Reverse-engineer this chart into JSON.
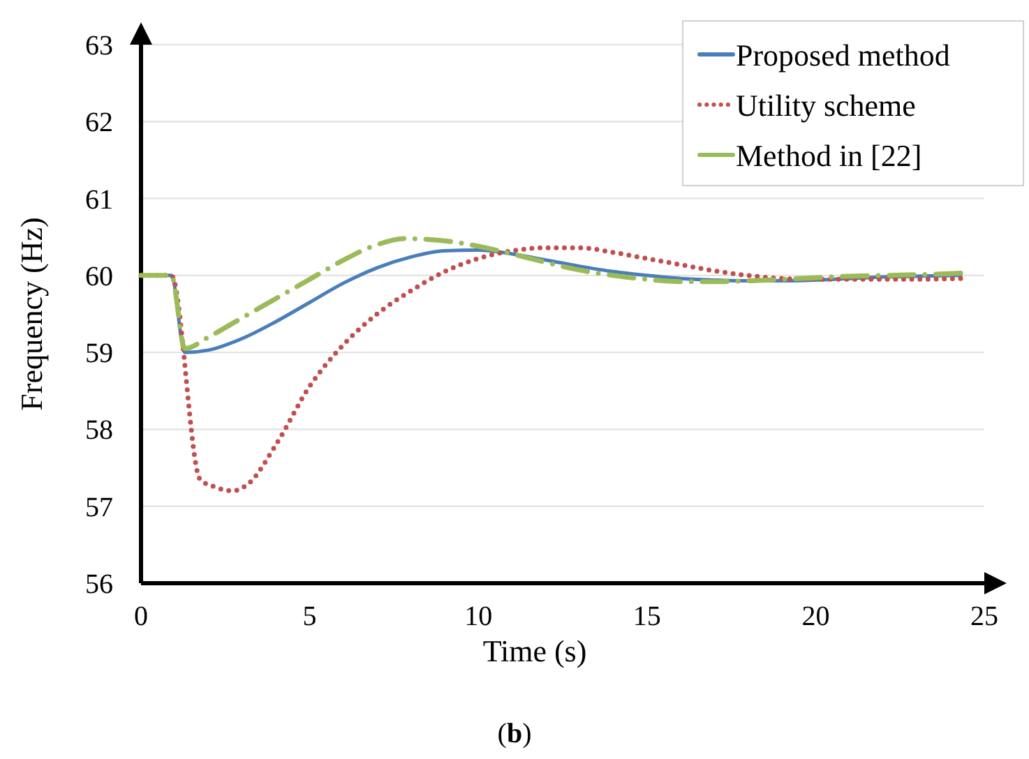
{
  "chart_data": {
    "type": "line",
    "xlabel": "Time (s)",
    "ylabel": "Frequency (Hz)",
    "xlim": [
      0,
      25
    ],
    "xticks": [
      0,
      5,
      10,
      15,
      20,
      25
    ],
    "ylim": [
      56,
      63
    ],
    "yticks": [
      56,
      57,
      58,
      59,
      60,
      61,
      62,
      63
    ],
    "grid": "y",
    "legend": "top right",
    "annotations": [
      "(b)"
    ],
    "series": [
      {
        "name": "Proposed method",
        "color": "#4a7ebb",
        "line_style": "solid",
        "x": [
          0,
          0.9,
          1.3,
          2,
          3,
          4,
          5,
          6,
          7,
          8,
          9,
          10,
          11,
          12,
          13,
          14,
          15,
          16,
          17,
          18,
          19,
          20,
          21,
          22,
          23,
          24.3
        ],
        "values": [
          60,
          60,
          59.0,
          59.03,
          59.18,
          59.4,
          59.65,
          59.9,
          60.1,
          60.24,
          60.32,
          60.33,
          60.28,
          60.2,
          60.12,
          60.05,
          60.0,
          59.96,
          59.94,
          59.93,
          59.93,
          59.94,
          59.96,
          59.98,
          59.99,
          60.0
        ]
      },
      {
        "name": "Utility scheme",
        "color": "#c0504d",
        "line_style": "dotted",
        "x": [
          0,
          0.9,
          1.75,
          2.2,
          2.7,
          3.2,
          4,
          5,
          6,
          7,
          8,
          9,
          10,
          11,
          12,
          13,
          14,
          15,
          16,
          17,
          18,
          19,
          20,
          21,
          22,
          23,
          24.3
        ],
        "values": [
          60,
          60,
          57.35,
          57.25,
          57.2,
          57.3,
          57.8,
          58.56,
          59.1,
          59.5,
          59.8,
          60.05,
          60.22,
          60.32,
          60.36,
          60.36,
          60.3,
          60.22,
          60.14,
          60.06,
          60.0,
          59.96,
          59.95,
          59.95,
          59.95,
          59.95,
          59.96
        ]
      },
      {
        "name": "Method in [22]",
        "color": "#9bbb59",
        "line_style": "dashdot",
        "x": [
          0,
          0.9,
          1.3,
          2,
          3,
          4,
          5,
          6,
          7,
          7.8,
          9,
          10,
          11,
          12,
          13,
          14,
          15,
          16,
          17,
          18,
          19,
          20,
          21,
          22,
          23,
          24.3
        ],
        "values": [
          60,
          60,
          59.05,
          59.2,
          59.45,
          59.7,
          59.95,
          60.2,
          60.4,
          60.48,
          60.45,
          60.38,
          60.28,
          60.17,
          60.07,
          60.0,
          59.95,
          59.92,
          59.92,
          59.93,
          59.95,
          59.97,
          59.99,
          60.0,
          60.01,
          60.03
        ]
      }
    ]
  }
}
